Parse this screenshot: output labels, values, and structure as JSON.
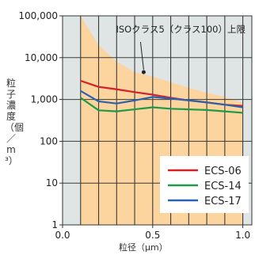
{
  "chart_data": {
    "type": "line",
    "xlabel": "粒径（μm）",
    "ylabel": "粒子濃度（個／m³）",
    "xlim": [
      0.0,
      1.05
    ],
    "ylim": [
      1,
      100000
    ],
    "yscale": "log",
    "x_ticks": [
      {
        "value": 0.0,
        "label": "0.0"
      },
      {
        "value": 0.5,
        "label": "0.5"
      },
      {
        "value": 1.0,
        "label": "1.0"
      }
    ],
    "y_ticks": [
      {
        "value": 1,
        "label": "1"
      },
      {
        "value": 10,
        "label": "10"
      },
      {
        "value": 100,
        "label": "100"
      },
      {
        "value": 1000,
        "label": "1,000"
      },
      {
        "value": 10000,
        "label": "10,000"
      },
      {
        "value": 100000,
        "label": "100,000"
      }
    ],
    "annotation": "ISOクラス5（クラス100）上限",
    "annotation_point": {
      "x": 0.45,
      "y": 4500
    },
    "limit_area": {
      "x": [
        0.1,
        0.2,
        0.3,
        0.4,
        0.5,
        0.6,
        0.7,
        0.8,
        0.9,
        1.0
      ],
      "y": [
        100000,
        20000,
        8000,
        4500,
        3520,
        2600,
        1900,
        1450,
        1150,
        830
      ]
    },
    "series": [
      {
        "name": "ECS-06",
        "color": "#d42027",
        "x": [
          0.1,
          0.2,
          0.3,
          0.4,
          0.5,
          0.6,
          0.7,
          0.8,
          0.9,
          1.0
        ],
        "y": [
          2800,
          2000,
          1750,
          1500,
          1300,
          1100,
          950,
          850,
          750,
          700
        ]
      },
      {
        "name": "ECS-14",
        "color": "#1e9a48",
        "x": [
          0.1,
          0.2,
          0.3,
          0.4,
          0.5,
          0.6,
          0.7,
          0.8,
          0.9,
          1.0
        ],
        "y": [
          1100,
          550,
          520,
          580,
          650,
          600,
          580,
          560,
          520,
          480
        ]
      },
      {
        "name": "ECS-17",
        "color": "#2a62b0",
        "x": [
          0.1,
          0.2,
          0.3,
          0.4,
          0.5,
          0.6,
          0.7,
          0.8,
          0.9,
          1.0
        ],
        "y": [
          1600,
          900,
          800,
          950,
          1150,
          1050,
          950,
          850,
          750,
          650
        ]
      }
    ],
    "colors": {
      "plot_background": "#dfe4e5",
      "limit_fill": "#fcd49e",
      "grid": "#3a3a3a",
      "axis": "#333333"
    },
    "legend_position": "bottom-right",
    "grid": true
  }
}
